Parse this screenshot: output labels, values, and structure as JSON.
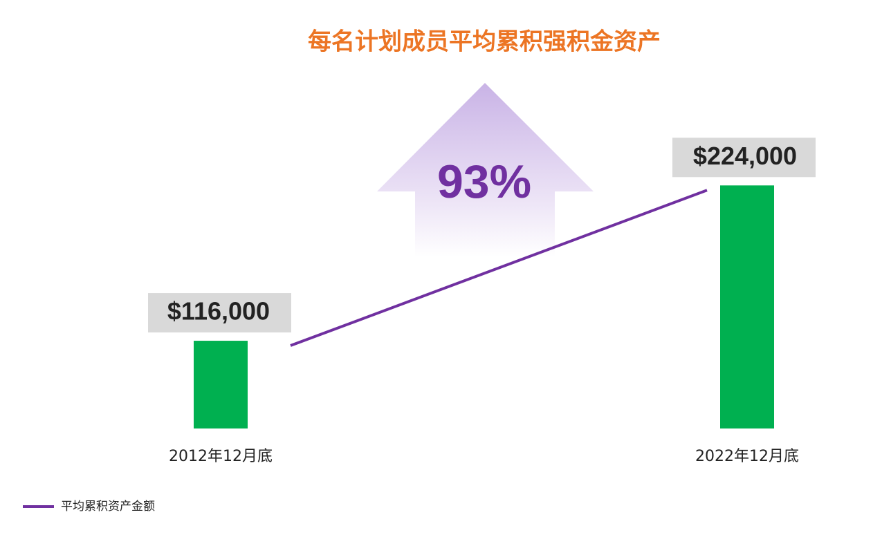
{
  "chart_data": {
    "type": "bar",
    "title": "每名计划成员平均累积强积金资产",
    "categories": [
      "2012年12月底",
      "2022年12月底"
    ],
    "values": [
      116000,
      224000
    ],
    "value_labels": [
      "$116,000",
      "$224,000"
    ],
    "color": "#00b050",
    "line": {
      "name": "平均累积资产金额",
      "color": "#7030a0",
      "values": [
        116000,
        224000
      ]
    },
    "annotation": "93%",
    "ylim": [
      55000,
      240000
    ]
  }
}
